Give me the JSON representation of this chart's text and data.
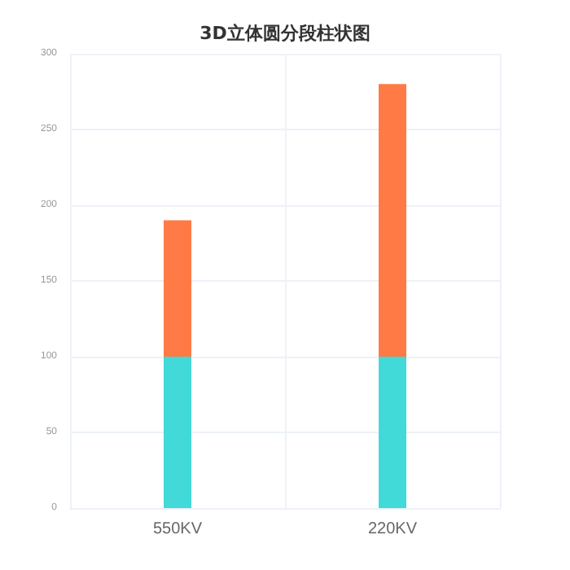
{
  "chart_data": {
    "type": "bar",
    "title": "3D立体圆分段柱状图",
    "categories": [
      "550KV",
      "220KV"
    ],
    "stacked": true,
    "series": [
      {
        "color": "#42d9d9",
        "values": [
          100,
          100
        ]
      },
      {
        "color": "#ff7a45",
        "values": [
          90,
          180
        ]
      }
    ],
    "ylim": [
      0,
      300
    ],
    "yticks": [
      0,
      50,
      100,
      150,
      200,
      250,
      300
    ],
    "grid": true
  }
}
